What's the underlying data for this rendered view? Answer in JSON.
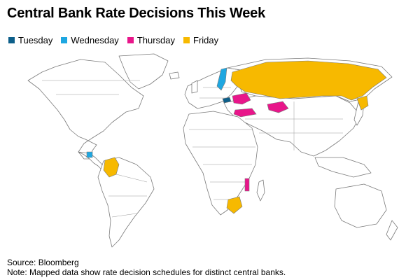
{
  "title": "Central Bank Rate Decisions This Week",
  "legend": [
    {
      "label": "Tuesday",
      "color": "#0d5f8a"
    },
    {
      "label": "Wednesday",
      "color": "#1ea7e1"
    },
    {
      "label": "Thursday",
      "color": "#e8168a"
    },
    {
      "label": "Friday",
      "color": "#f7b900"
    }
  ],
  "map": {
    "land_color": "#ffffff",
    "border_color": "#7a7a7a",
    "ocean_color": "#ffffff"
  },
  "source": "Source: Bloomberg",
  "note": "Note: Mapped data show rate decision schedules for distinct central banks."
}
